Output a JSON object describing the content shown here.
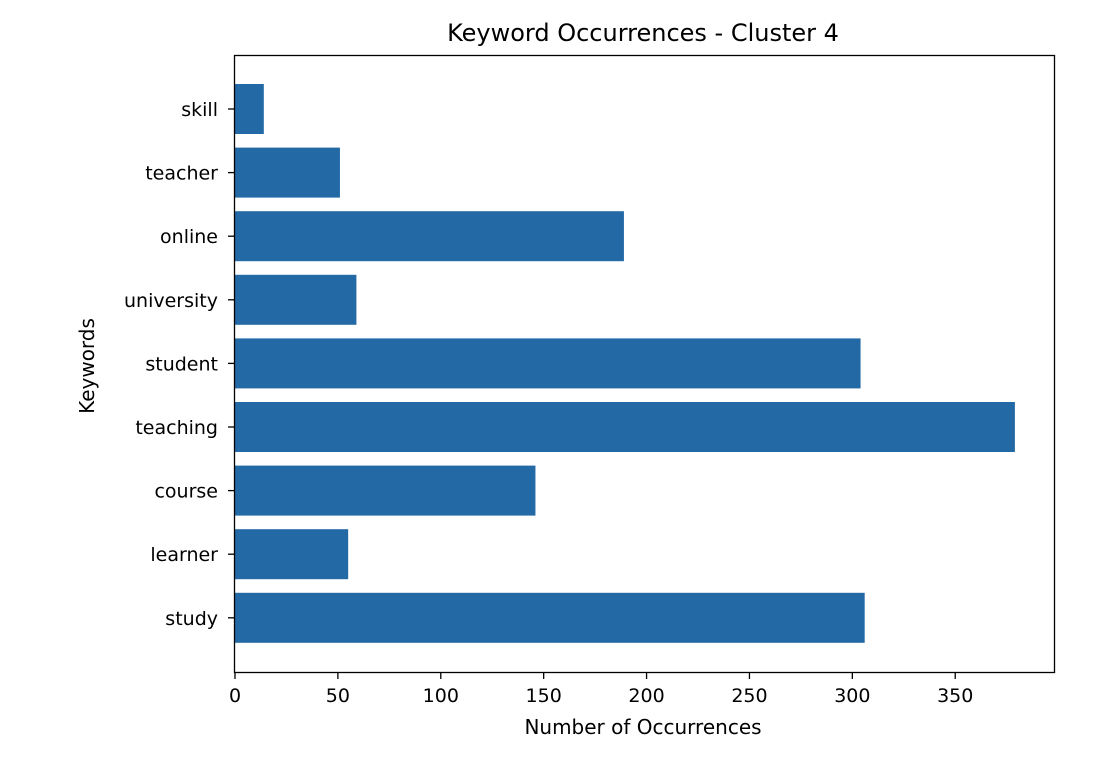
{
  "chart_data": {
    "type": "bar",
    "orientation": "horizontal",
    "title": "Keyword Occurrences - Cluster 4",
    "xlabel": "Number of Occurrences",
    "ylabel": "Keywords",
    "categories": [
      "study",
      "learner",
      "course",
      "teaching",
      "student",
      "university",
      "online",
      "teacher",
      "skill"
    ],
    "values": [
      306,
      55,
      146,
      379,
      304,
      59,
      189,
      51,
      14
    ],
    "xlim": [
      0,
      398
    ],
    "xticks": [
      0,
      50,
      100,
      150,
      200,
      250,
      300,
      350
    ],
    "grid": false,
    "bar_color": "#2369a6"
  }
}
